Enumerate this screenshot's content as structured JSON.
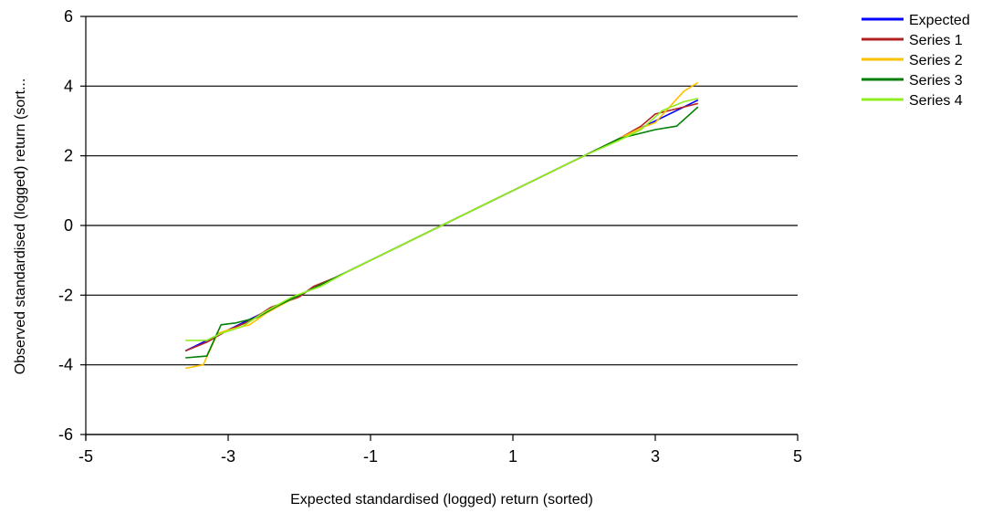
{
  "chart_data": {
    "type": "line",
    "xlabel": "Expected standardised (logged) return (sorted)",
    "ylabel": "Observed standardised (logged) return (sort...",
    "xlim": [
      -5,
      5
    ],
    "ylim": [
      -6,
      6
    ],
    "xticks": [
      -5,
      -3,
      -1,
      1,
      3,
      5
    ],
    "yticks": [
      6,
      4,
      2,
      0,
      -2,
      -4,
      -6
    ],
    "xtick_labels": [
      "-5",
      "-3",
      "-1",
      "1",
      "3",
      "5"
    ],
    "ytick_labels": [
      "6",
      "4",
      "2",
      "0",
      "-2",
      "-4",
      "-6"
    ],
    "grid": "horizontal",
    "legend_position": "top-right",
    "series": [
      {
        "name": "Expected",
        "color": "#0000ff",
        "x": [
          -3.6,
          3.6
        ],
        "y": [
          -3.6,
          3.6
        ]
      },
      {
        "name": "Series 1",
        "color": "#b22222",
        "x": [
          -3.6,
          -3.3,
          -3.0,
          -2.7,
          -2.4,
          -2.0,
          -1.8,
          -1.5,
          -1.0,
          -0.5,
          0,
          0.5,
          1.0,
          1.5,
          2.0,
          2.5,
          2.8,
          3.0,
          3.3,
          3.6
        ],
        "y": [
          -3.6,
          -3.35,
          -3.0,
          -2.75,
          -2.35,
          -2.05,
          -1.75,
          -1.5,
          -1.0,
          -0.5,
          0,
          0.5,
          1.0,
          1.5,
          2.0,
          2.5,
          2.85,
          3.2,
          3.35,
          3.5
        ]
      },
      {
        "name": "Series 2",
        "color": "#ffc000",
        "x": [
          -3.6,
          -3.35,
          -3.15,
          -3.0,
          -2.7,
          -2.45,
          -2.0,
          -1.5,
          -1.0,
          -0.5,
          0,
          0.5,
          1.0,
          1.5,
          2.0,
          2.5,
          2.8,
          3.0,
          3.2,
          3.4,
          3.6
        ],
        "y": [
          -4.1,
          -4.0,
          -3.1,
          -3.0,
          -2.85,
          -2.5,
          -2.0,
          -1.5,
          -1.0,
          -0.5,
          0,
          0.5,
          1.0,
          1.5,
          2.0,
          2.5,
          2.8,
          2.95,
          3.4,
          3.85,
          4.1
        ]
      },
      {
        "name": "Series 3",
        "color": "#007f00",
        "x": [
          -3.6,
          -3.3,
          -3.1,
          -2.9,
          -2.6,
          -2.3,
          -1.9,
          -1.5,
          -1.0,
          -0.5,
          0,
          0.5,
          1.0,
          1.5,
          2.0,
          2.5,
          2.8,
          3.0,
          3.3,
          3.6
        ],
        "y": [
          -3.8,
          -3.75,
          -2.85,
          -2.8,
          -2.65,
          -2.3,
          -1.9,
          -1.5,
          -1.0,
          -0.5,
          0,
          0.5,
          1.0,
          1.5,
          2.0,
          2.5,
          2.65,
          2.75,
          2.85,
          3.4
        ]
      },
      {
        "name": "Series 4",
        "color": "#90ee20",
        "x": [
          -3.6,
          -3.3,
          -3.1,
          -2.8,
          -2.5,
          -2.1,
          -1.7,
          -1.3,
          -1.0,
          -0.5,
          0,
          0.5,
          1.0,
          1.5,
          2.0,
          2.5,
          2.8,
          3.1,
          3.4,
          3.6
        ],
        "y": [
          -3.3,
          -3.3,
          -3.1,
          -2.9,
          -2.5,
          -2.05,
          -1.75,
          -1.3,
          -1.0,
          -0.5,
          0,
          0.5,
          1.0,
          1.5,
          2.0,
          2.45,
          2.75,
          3.3,
          3.55,
          3.65
        ]
      }
    ]
  }
}
